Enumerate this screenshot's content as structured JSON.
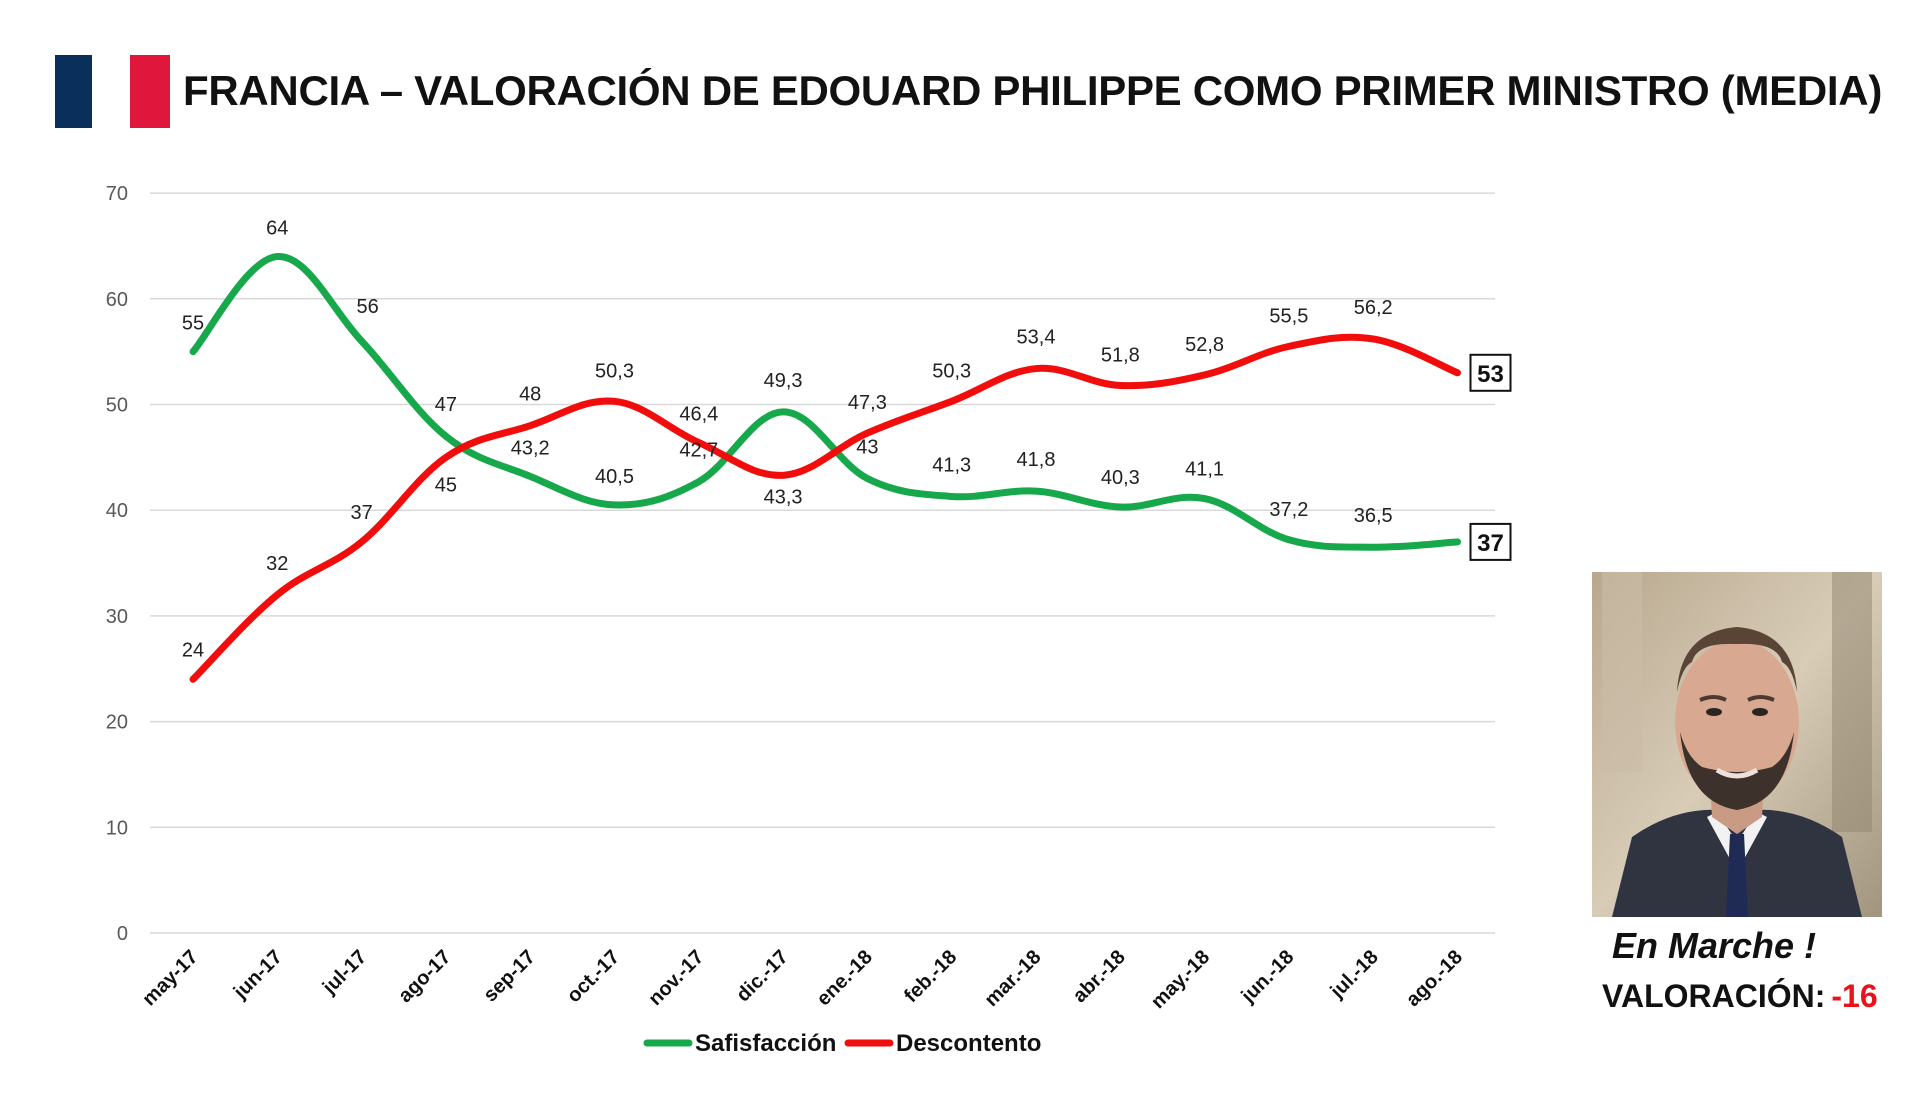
{
  "title": "FRANCIA – VALORACIÓN DE EDOUARD PHILIPPE COMO PRIMER MINISTRO (MEDIA)",
  "flag_colors": {
    "left": "#0b2f5b",
    "right": "#e0163d"
  },
  "side_panel": {
    "party": "En Marche !",
    "rating_label": "VALORACIÓN:",
    "rating_value": "-16",
    "photo_icon": "portrait-photo"
  },
  "chart_data": {
    "type": "line",
    "categories": [
      "may-17",
      "jun-17",
      "jul-17",
      "ago-17",
      "sep-17",
      "oct.-17",
      "nov.-17",
      "dic.-17",
      "ene.-18",
      "feb.-18",
      "mar.-18",
      "abr.-18",
      "may.-18",
      "jun.-18",
      "jul.-18",
      "ago.-18"
    ],
    "ylim": [
      0,
      70
    ],
    "yticks": [
      0,
      10,
      20,
      30,
      40,
      50,
      60,
      70
    ],
    "grid": true,
    "legend_position": "bottom",
    "series": [
      {
        "name": "Safisfacción",
        "color": "#17a84b",
        "values": [
          55,
          64,
          56,
          47,
          43.2,
          40.5,
          42.7,
          49.3,
          43,
          41.3,
          41.8,
          40.3,
          41.1,
          37.2,
          36.5,
          37
        ],
        "labels": [
          "55",
          "64",
          "56",
          "47",
          "43,2",
          "40,5",
          "42,7",
          "49,3",
          "43",
          "41,3",
          "41,8",
          "40,3",
          "41,1",
          "37,2",
          "36,5",
          ""
        ],
        "end_label": "37"
      },
      {
        "name": "Descontento",
        "color": "#f20d0d",
        "values": [
          24,
          32,
          37,
          45,
          48,
          50.3,
          46.4,
          43.3,
          47.3,
          50.3,
          53.4,
          51.8,
          52.8,
          55.5,
          56.2,
          53
        ],
        "labels": [
          "24",
          "32",
          "37",
          "45",
          "48",
          "50,3",
          "46,4",
          "43,3",
          "47,3",
          "50,3",
          "53,4",
          "51,8",
          "52,8",
          "55,5",
          "56,2",
          ""
        ],
        "end_label": "53"
      }
    ]
  }
}
